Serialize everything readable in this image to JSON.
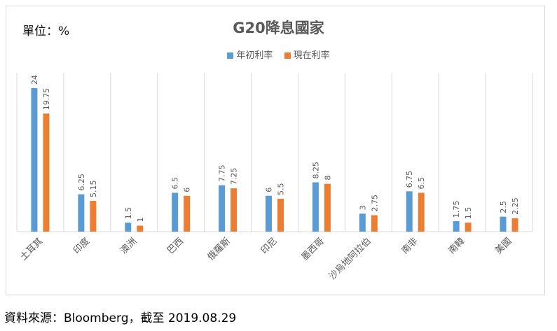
{
  "unit_label": "單位：%",
  "source": "資料來源：Bloomberg，截至 2019.08.29",
  "colors": {
    "series1": "#5b9bd5",
    "series2": "#ed7d31",
    "grid": "#d9d9d9",
    "text": "#595959"
  },
  "chart_data": {
    "type": "bar",
    "title": "G20降息國家",
    "categories": [
      "土耳其",
      "印度",
      "澳洲",
      "巴西",
      "俄羅斯",
      "印尼",
      "墨西哥",
      "沙烏地阿拉伯",
      "南非",
      "南韓",
      "美國"
    ],
    "series": [
      {
        "name": "年初利率",
        "values": [
          24,
          6.25,
          1.5,
          6.5,
          7.75,
          6,
          8.25,
          3,
          6.75,
          1.75,
          2.5
        ],
        "labels": [
          "24",
          "6.25",
          "1.5",
          "6.5",
          "7.75",
          "6",
          "8.25",
          "3",
          "6.75",
          "1.75",
          "2.5"
        ]
      },
      {
        "name": "現在利率",
        "values": [
          19.75,
          5.15,
          1,
          6,
          7.25,
          5.5,
          8,
          2.75,
          6.5,
          1.5,
          2.25
        ],
        "labels": [
          "19.75",
          "5.15",
          "1",
          "6",
          "7.25",
          "5.5",
          "8",
          "2.75",
          "6.5",
          "1.5",
          "2.25"
        ]
      }
    ],
    "ylim": [
      0,
      28
    ],
    "legend": "top-center",
    "grid": "vertical category separators"
  }
}
